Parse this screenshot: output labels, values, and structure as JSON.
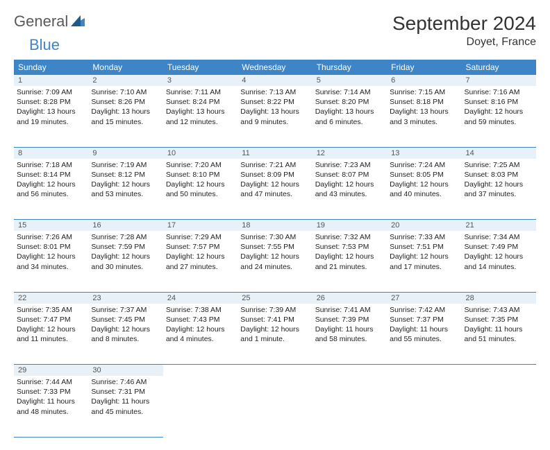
{
  "brand": {
    "part1": "General",
    "part2": "Blue"
  },
  "title": "September 2024",
  "location": "Doyet, France",
  "colors": {
    "header_bg": "#3d85c6",
    "header_text": "#ffffff",
    "daynum_bg": "#e8f0f8",
    "border": "#3d85c6",
    "logo_gray": "#5a5a5a",
    "logo_blue": "#3d85c6",
    "page_bg": "#ffffff"
  },
  "day_names": [
    "Sunday",
    "Monday",
    "Tuesday",
    "Wednesday",
    "Thursday",
    "Friday",
    "Saturday"
  ],
  "weeks": [
    [
      {
        "n": "1",
        "sunrise": "Sunrise: 7:09 AM",
        "sunset": "Sunset: 8:28 PM",
        "daylight1": "Daylight: 13 hours",
        "daylight2": "and 19 minutes."
      },
      {
        "n": "2",
        "sunrise": "Sunrise: 7:10 AM",
        "sunset": "Sunset: 8:26 PM",
        "daylight1": "Daylight: 13 hours",
        "daylight2": "and 15 minutes."
      },
      {
        "n": "3",
        "sunrise": "Sunrise: 7:11 AM",
        "sunset": "Sunset: 8:24 PM",
        "daylight1": "Daylight: 13 hours",
        "daylight2": "and 12 minutes."
      },
      {
        "n": "4",
        "sunrise": "Sunrise: 7:13 AM",
        "sunset": "Sunset: 8:22 PM",
        "daylight1": "Daylight: 13 hours",
        "daylight2": "and 9 minutes."
      },
      {
        "n": "5",
        "sunrise": "Sunrise: 7:14 AM",
        "sunset": "Sunset: 8:20 PM",
        "daylight1": "Daylight: 13 hours",
        "daylight2": "and 6 minutes."
      },
      {
        "n": "6",
        "sunrise": "Sunrise: 7:15 AM",
        "sunset": "Sunset: 8:18 PM",
        "daylight1": "Daylight: 13 hours",
        "daylight2": "and 3 minutes."
      },
      {
        "n": "7",
        "sunrise": "Sunrise: 7:16 AM",
        "sunset": "Sunset: 8:16 PM",
        "daylight1": "Daylight: 12 hours",
        "daylight2": "and 59 minutes."
      }
    ],
    [
      {
        "n": "8",
        "sunrise": "Sunrise: 7:18 AM",
        "sunset": "Sunset: 8:14 PM",
        "daylight1": "Daylight: 12 hours",
        "daylight2": "and 56 minutes."
      },
      {
        "n": "9",
        "sunrise": "Sunrise: 7:19 AM",
        "sunset": "Sunset: 8:12 PM",
        "daylight1": "Daylight: 12 hours",
        "daylight2": "and 53 minutes."
      },
      {
        "n": "10",
        "sunrise": "Sunrise: 7:20 AM",
        "sunset": "Sunset: 8:10 PM",
        "daylight1": "Daylight: 12 hours",
        "daylight2": "and 50 minutes."
      },
      {
        "n": "11",
        "sunrise": "Sunrise: 7:21 AM",
        "sunset": "Sunset: 8:09 PM",
        "daylight1": "Daylight: 12 hours",
        "daylight2": "and 47 minutes."
      },
      {
        "n": "12",
        "sunrise": "Sunrise: 7:23 AM",
        "sunset": "Sunset: 8:07 PM",
        "daylight1": "Daylight: 12 hours",
        "daylight2": "and 43 minutes."
      },
      {
        "n": "13",
        "sunrise": "Sunrise: 7:24 AM",
        "sunset": "Sunset: 8:05 PM",
        "daylight1": "Daylight: 12 hours",
        "daylight2": "and 40 minutes."
      },
      {
        "n": "14",
        "sunrise": "Sunrise: 7:25 AM",
        "sunset": "Sunset: 8:03 PM",
        "daylight1": "Daylight: 12 hours",
        "daylight2": "and 37 minutes."
      }
    ],
    [
      {
        "n": "15",
        "sunrise": "Sunrise: 7:26 AM",
        "sunset": "Sunset: 8:01 PM",
        "daylight1": "Daylight: 12 hours",
        "daylight2": "and 34 minutes."
      },
      {
        "n": "16",
        "sunrise": "Sunrise: 7:28 AM",
        "sunset": "Sunset: 7:59 PM",
        "daylight1": "Daylight: 12 hours",
        "daylight2": "and 30 minutes."
      },
      {
        "n": "17",
        "sunrise": "Sunrise: 7:29 AM",
        "sunset": "Sunset: 7:57 PM",
        "daylight1": "Daylight: 12 hours",
        "daylight2": "and 27 minutes."
      },
      {
        "n": "18",
        "sunrise": "Sunrise: 7:30 AM",
        "sunset": "Sunset: 7:55 PM",
        "daylight1": "Daylight: 12 hours",
        "daylight2": "and 24 minutes."
      },
      {
        "n": "19",
        "sunrise": "Sunrise: 7:32 AM",
        "sunset": "Sunset: 7:53 PM",
        "daylight1": "Daylight: 12 hours",
        "daylight2": "and 21 minutes."
      },
      {
        "n": "20",
        "sunrise": "Sunrise: 7:33 AM",
        "sunset": "Sunset: 7:51 PM",
        "daylight1": "Daylight: 12 hours",
        "daylight2": "and 17 minutes."
      },
      {
        "n": "21",
        "sunrise": "Sunrise: 7:34 AM",
        "sunset": "Sunset: 7:49 PM",
        "daylight1": "Daylight: 12 hours",
        "daylight2": "and 14 minutes."
      }
    ],
    [
      {
        "n": "22",
        "sunrise": "Sunrise: 7:35 AM",
        "sunset": "Sunset: 7:47 PM",
        "daylight1": "Daylight: 12 hours",
        "daylight2": "and 11 minutes."
      },
      {
        "n": "23",
        "sunrise": "Sunrise: 7:37 AM",
        "sunset": "Sunset: 7:45 PM",
        "daylight1": "Daylight: 12 hours",
        "daylight2": "and 8 minutes."
      },
      {
        "n": "24",
        "sunrise": "Sunrise: 7:38 AM",
        "sunset": "Sunset: 7:43 PM",
        "daylight1": "Daylight: 12 hours",
        "daylight2": "and 4 minutes."
      },
      {
        "n": "25",
        "sunrise": "Sunrise: 7:39 AM",
        "sunset": "Sunset: 7:41 PM",
        "daylight1": "Daylight: 12 hours",
        "daylight2": "and 1 minute."
      },
      {
        "n": "26",
        "sunrise": "Sunrise: 7:41 AM",
        "sunset": "Sunset: 7:39 PM",
        "daylight1": "Daylight: 11 hours",
        "daylight2": "and 58 minutes."
      },
      {
        "n": "27",
        "sunrise": "Sunrise: 7:42 AM",
        "sunset": "Sunset: 7:37 PM",
        "daylight1": "Daylight: 11 hours",
        "daylight2": "and 55 minutes."
      },
      {
        "n": "28",
        "sunrise": "Sunrise: 7:43 AM",
        "sunset": "Sunset: 7:35 PM",
        "daylight1": "Daylight: 11 hours",
        "daylight2": "and 51 minutes."
      }
    ],
    [
      {
        "n": "29",
        "sunrise": "Sunrise: 7:44 AM",
        "sunset": "Sunset: 7:33 PM",
        "daylight1": "Daylight: 11 hours",
        "daylight2": "and 48 minutes."
      },
      {
        "n": "30",
        "sunrise": "Sunrise: 7:46 AM",
        "sunset": "Sunset: 7:31 PM",
        "daylight1": "Daylight: 11 hours",
        "daylight2": "and 45 minutes."
      },
      null,
      null,
      null,
      null,
      null
    ]
  ]
}
